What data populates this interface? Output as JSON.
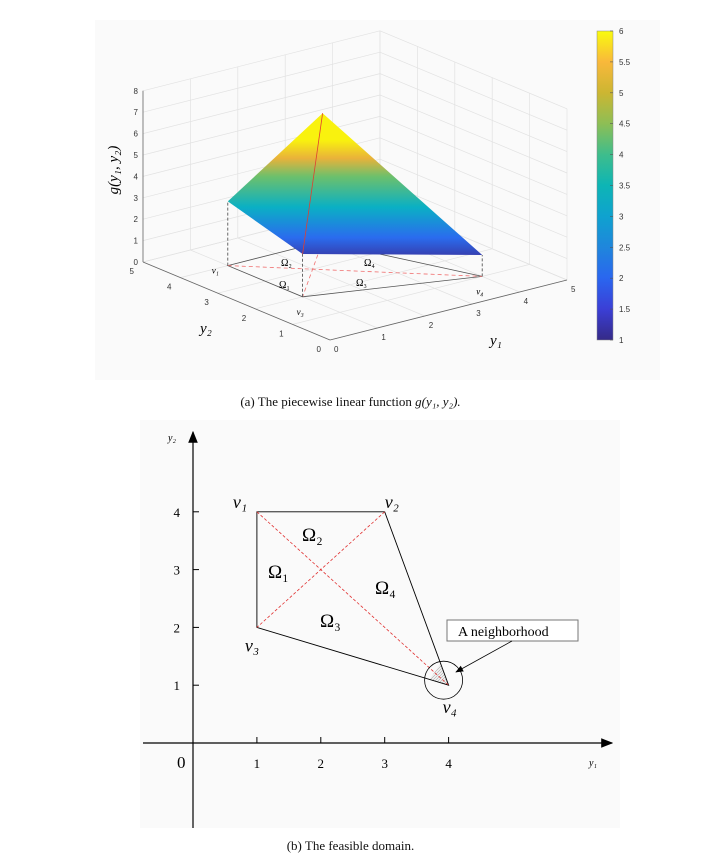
{
  "figure_a": {
    "caption_prefix": "(a)  The piecewise linear function ",
    "caption_math": "g(y₁, y₂).",
    "zlabel": "g(y₁, y₂)",
    "xlabel": "y₁",
    "ylabel": "y₂",
    "z_ticks": [
      "0",
      "1",
      "2",
      "3",
      "4",
      "5",
      "6",
      "7",
      "8"
    ],
    "y1_ticks": [
      "0",
      "1",
      "2",
      "3",
      "4",
      "5"
    ],
    "y2_ticks": [
      "0",
      "1",
      "2",
      "3",
      "4",
      "5"
    ],
    "colorbar_ticks": [
      "1",
      "1.5",
      "2",
      "2.5",
      "3",
      "3.5",
      "4",
      "4.5",
      "5",
      "5.5",
      "6"
    ],
    "vertex_labels": [
      "v₁",
      "v₃",
      "v₄"
    ],
    "region_labels": [
      "Ω₁",
      "Ω₂",
      "Ω₃",
      "Ω₄"
    ]
  },
  "figure_b": {
    "caption": "(b)  The feasible domain.",
    "origin_label": "0",
    "xlabel": "y₁",
    "ylabel": "y₂",
    "x_ticks": [
      "1",
      "2",
      "3",
      "4"
    ],
    "y_ticks": [
      "1",
      "2",
      "3",
      "4"
    ],
    "vertex_labels": [
      "v₁",
      "v₂",
      "v₃",
      "v₄"
    ],
    "region_labels": [
      "Ω₁",
      "Ω₂",
      "Ω₃",
      "Ω₄"
    ],
    "annotation": "A  neighborhood"
  },
  "chart_data": [
    {
      "type": "surface",
      "title": "",
      "xlabel": "y₁",
      "ylabel": "y₂",
      "zlabel": "g(y₁, y₂)",
      "xlim": [
        0,
        5
      ],
      "ylim": [
        0,
        5
      ],
      "zlim": [
        0,
        8
      ],
      "colorbar": {
        "range": [
          1,
          6
        ],
        "colormap": "parula"
      },
      "vertices": [
        {
          "name": "v1",
          "y1": 1,
          "y2": 4,
          "g": 3
        },
        {
          "name": "v2",
          "y1": 3,
          "y2": 4,
          "g": 6
        },
        {
          "name": "v3",
          "y1": 1,
          "y2": 2,
          "g": 2
        },
        {
          "name": "v4",
          "y1": 4,
          "y2": 1,
          "g": 1
        }
      ],
      "grid": true
    },
    {
      "type": "diagram",
      "xlabel": "y₁",
      "ylabel": "y₂",
      "vertices": [
        {
          "name": "v1",
          "y1": 1,
          "y2": 4
        },
        {
          "name": "v2",
          "y1": 3,
          "y2": 4
        },
        {
          "name": "v3",
          "y1": 1,
          "y2": 2
        },
        {
          "name": "v4",
          "y1": 4,
          "y2": 1
        }
      ],
      "neighborhood_center": {
        "y1": 4,
        "y2": 1
      }
    }
  ]
}
